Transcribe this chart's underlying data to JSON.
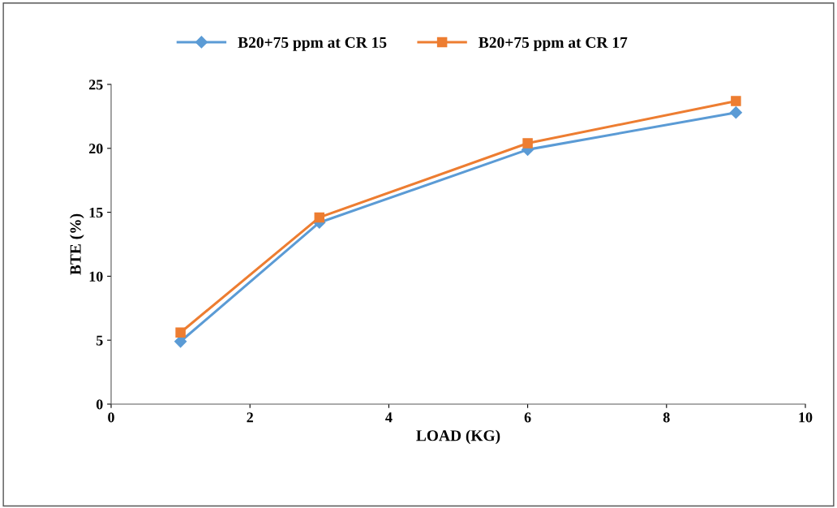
{
  "chart_data": {
    "type": "line",
    "xlabel": "LOAD (KG)",
    "ylabel": "BTE (%)",
    "x": [
      1,
      3,
      6,
      9
    ],
    "series": [
      {
        "name": "B20+75 ppm at CR 15",
        "color": "#5b9bd5",
        "marker": "diamond",
        "values": [
          4.9,
          14.2,
          19.9,
          22.8
        ]
      },
      {
        "name": "B20+75 ppm at CR 17",
        "color": "#ed7d31",
        "marker": "square",
        "values": [
          5.6,
          14.6,
          20.4,
          23.7
        ]
      }
    ],
    "xlim": [
      0,
      10
    ],
    "xticks": [
      0,
      2,
      4,
      6,
      8,
      10
    ],
    "ylim": [
      0,
      25
    ],
    "yticks": [
      0,
      5,
      10,
      15,
      20,
      25
    ],
    "grid": false,
    "legend": "top",
    "line_style": "solid"
  }
}
